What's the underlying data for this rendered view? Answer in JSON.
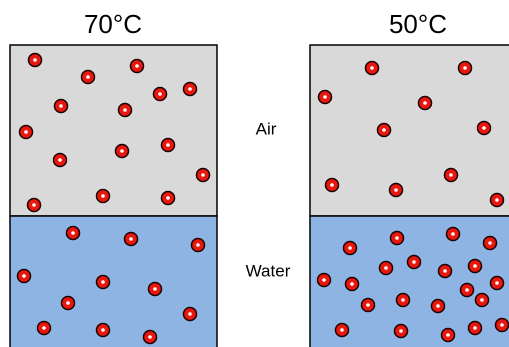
{
  "left": {
    "temperature": "70°C"
  },
  "right": {
    "temperature": "50°C"
  },
  "labels": {
    "air": "Air",
    "water": "Water"
  }
}
